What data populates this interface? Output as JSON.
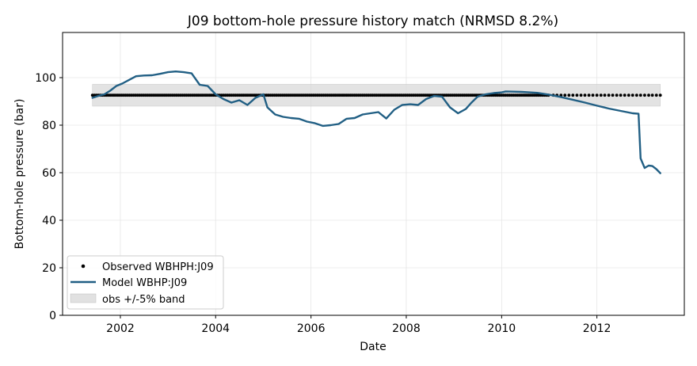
{
  "chart_data": {
    "type": "line",
    "title": "J09  bottom-hole pressure history match (NRMSD 8.2%)",
    "xlabel": "Date",
    "ylabel": "Bottom-hole pressure (bar)",
    "xlim": [
      "2000-10-15",
      "2013-11-01"
    ],
    "ylim": [
      0,
      119
    ],
    "x_ticks": [
      "2002",
      "2004",
      "2006",
      "2008",
      "2010",
      "2012"
    ],
    "y_ticks": [
      0,
      20,
      40,
      60,
      80,
      100
    ],
    "grid": true,
    "legend_position": "lower-left",
    "colors": {
      "model": "#215f84",
      "observed": "#000000",
      "band": "#d9d9d9"
    },
    "series": [
      {
        "name": "Observed WBHPH:J09",
        "kind": "points",
        "x_start": "2001-06-01",
        "x_end": "2011-01-01",
        "interval_days": 15,
        "values_constant": 92.6
      },
      {
        "name": "Observed WBHPH:J09",
        "kind": "points",
        "x": [
          "2011-02-01",
          "2011-03-01",
          "2011-04-01",
          "2011-05-01",
          "2011-06-01",
          "2011-07-01",
          "2011-08-01",
          "2011-09-01",
          "2011-10-01",
          "2011-11-01",
          "2011-12-01",
          "2012-01-01",
          "2012-02-01",
          "2012-03-01",
          "2012-04-01",
          "2012-05-01",
          "2012-06-01",
          "2012-07-01",
          "2012-08-01",
          "2012-09-01",
          "2012-10-01",
          "2012-11-01",
          "2012-12-01",
          "2013-01-01",
          "2013-02-01",
          "2013-03-01",
          "2013-04-01",
          "2013-05-01"
        ],
        "values_constant": 92.6
      },
      {
        "name": "Model WBHP:J09",
        "kind": "line",
        "x": [
          "2001-06-01",
          "2001-07-15",
          "2001-09-01",
          "2001-10-15",
          "2001-12-01",
          "2002-01-15",
          "2002-03-01",
          "2002-05-01",
          "2002-07-01",
          "2002-09-01",
          "2002-11-01",
          "2003-01-01",
          "2003-03-01",
          "2003-05-01",
          "2003-07-01",
          "2003-09-01",
          "2003-11-01",
          "2004-01-01",
          "2004-03-01",
          "2004-05-01",
          "2004-07-01",
          "2004-09-01",
          "2004-11-01",
          "2005-01-01",
          "2005-02-01",
          "2005-04-01",
          "2005-06-01",
          "2005-08-01",
          "2005-10-01",
          "2005-12-01",
          "2006-02-01",
          "2006-04-01",
          "2006-06-01",
          "2006-08-01",
          "2006-10-01",
          "2006-12-01",
          "2007-02-01",
          "2007-04-01",
          "2007-06-01",
          "2007-08-01",
          "2007-10-01",
          "2007-12-01",
          "2008-02-01",
          "2008-04-01",
          "2008-06-01",
          "2008-08-01",
          "2008-10-01",
          "2008-12-01",
          "2009-02-01",
          "2009-04-01",
          "2009-05-15",
          "2009-07-01",
          "2009-09-01",
          "2009-11-01",
          "2010-01-01",
          "2010-02-01",
          "2010-04-01",
          "2010-06-01",
          "2010-08-01",
          "2010-10-01",
          "2011-01-01",
          "2011-04-01",
          "2011-07-01",
          "2011-10-01",
          "2012-01-01",
          "2012-04-01",
          "2012-07-01",
          "2012-10-01",
          "2012-11-15",
          "2012-12-01",
          "2013-01-01",
          "2013-02-01",
          "2013-03-01",
          "2013-04-01",
          "2013-05-01"
        ],
        "values": [
          91.5,
          92.3,
          93.0,
          94.5,
          96.5,
          97.5,
          98.8,
          100.6,
          100.9,
          101.0,
          101.6,
          102.3,
          102.6,
          102.3,
          101.8,
          97.0,
          96.5,
          93.0,
          91.0,
          89.5,
          90.5,
          88.5,
          91.5,
          93.0,
          87.5,
          84.5,
          83.5,
          83.0,
          82.7,
          81.5,
          80.8,
          79.7,
          80.0,
          80.5,
          82.7,
          83.0,
          84.5,
          85.0,
          85.5,
          82.8,
          86.5,
          88.5,
          88.8,
          88.5,
          91.0,
          92.3,
          92.0,
          87.5,
          85.0,
          86.8,
          89.5,
          92.0,
          93.0,
          93.5,
          93.8,
          94.2,
          94.1,
          94.0,
          93.8,
          93.6,
          92.8,
          91.8,
          90.7,
          89.5,
          88.2,
          87.0,
          86.0,
          85.0,
          84.8,
          66.0,
          62.0,
          63.0,
          62.8,
          61.5,
          59.8
        ]
      },
      {
        "name": "obs +/-5% band",
        "kind": "band",
        "x_start": "2001-06-01",
        "x_end": "2013-05-01",
        "lower": 88.0,
        "upper": 97.2
      }
    ]
  }
}
